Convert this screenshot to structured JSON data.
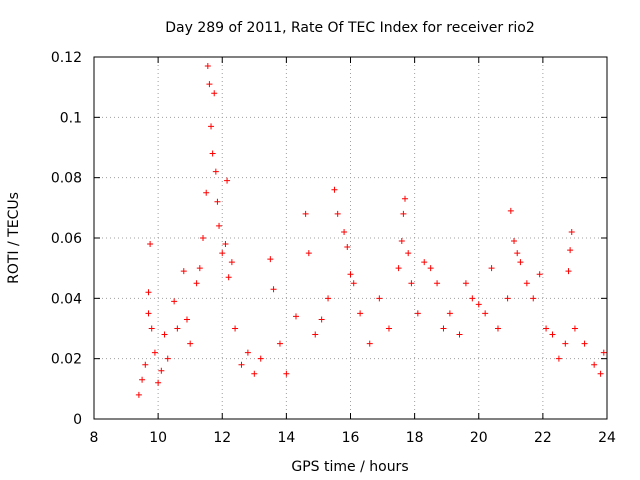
{
  "chart_data": {
    "type": "scatter",
    "title": "Day 289 of 2011, Rate Of TEC Index for receiver rio2",
    "xlabel": "GPS time / hours",
    "ylabel": "ROTI / TECUs",
    "xlim": [
      8,
      24
    ],
    "ylim": [
      0,
      0.12
    ],
    "xticks": [
      "8",
      "10",
      "12",
      "14",
      "16",
      "18",
      "20",
      "22",
      "24"
    ],
    "yticks": [
      "0",
      "0.02",
      "0.04",
      "0.06",
      "0.08",
      "0.1",
      "0.12"
    ],
    "grid": true,
    "marker": "plus",
    "color": "#ff0000",
    "series": [
      {
        "points": [
          [
            9.4,
            0.008
          ],
          [
            9.5,
            0.013
          ],
          [
            9.6,
            0.018
          ],
          [
            9.7,
            0.035
          ],
          [
            9.7,
            0.042
          ],
          [
            9.75,
            0.058
          ],
          [
            9.8,
            0.03
          ],
          [
            9.9,
            0.022
          ],
          [
            10.0,
            0.012
          ],
          [
            10.1,
            0.016
          ],
          [
            10.2,
            0.028
          ],
          [
            10.3,
            0.02
          ],
          [
            10.5,
            0.039
          ],
          [
            10.6,
            0.03
          ],
          [
            10.8,
            0.049
          ],
          [
            10.9,
            0.033
          ],
          [
            11.0,
            0.025
          ],
          [
            11.2,
            0.045
          ],
          [
            11.3,
            0.05
          ],
          [
            11.4,
            0.06
          ],
          [
            11.5,
            0.075
          ],
          [
            11.55,
            0.117
          ],
          [
            11.6,
            0.111
          ],
          [
            11.65,
            0.097
          ],
          [
            11.7,
            0.088
          ],
          [
            11.75,
            0.108
          ],
          [
            11.8,
            0.082
          ],
          [
            11.85,
            0.072
          ],
          [
            11.9,
            0.064
          ],
          [
            12.0,
            0.055
          ],
          [
            12.1,
            0.058
          ],
          [
            12.15,
            0.079
          ],
          [
            12.2,
            0.047
          ],
          [
            12.3,
            0.052
          ],
          [
            12.4,
            0.03
          ],
          [
            12.6,
            0.018
          ],
          [
            12.8,
            0.022
          ],
          [
            13.0,
            0.015
          ],
          [
            13.2,
            0.02
          ],
          [
            13.5,
            0.053
          ],
          [
            13.6,
            0.043
          ],
          [
            13.8,
            0.025
          ],
          [
            14.0,
            0.015
          ],
          [
            14.3,
            0.034
          ],
          [
            14.6,
            0.068
          ],
          [
            14.7,
            0.055
          ],
          [
            14.9,
            0.028
          ],
          [
            15.1,
            0.033
          ],
          [
            15.3,
            0.04
          ],
          [
            15.5,
            0.076
          ],
          [
            15.6,
            0.068
          ],
          [
            15.8,
            0.062
          ],
          [
            15.9,
            0.057
          ],
          [
            16.0,
            0.048
          ],
          [
            16.1,
            0.045
          ],
          [
            16.3,
            0.035
          ],
          [
            16.6,
            0.025
          ],
          [
            16.9,
            0.04
          ],
          [
            17.2,
            0.03
          ],
          [
            17.5,
            0.05
          ],
          [
            17.6,
            0.059
          ],
          [
            17.65,
            0.068
          ],
          [
            17.7,
            0.073
          ],
          [
            17.8,
            0.055
          ],
          [
            17.9,
            0.045
          ],
          [
            18.1,
            0.035
          ],
          [
            18.3,
            0.052
          ],
          [
            18.5,
            0.05
          ],
          [
            18.7,
            0.045
          ],
          [
            18.9,
            0.03
          ],
          [
            19.1,
            0.035
          ],
          [
            19.4,
            0.028
          ],
          [
            19.6,
            0.045
          ],
          [
            19.8,
            0.04
          ],
          [
            20.0,
            0.038
          ],
          [
            20.2,
            0.035
          ],
          [
            20.4,
            0.05
          ],
          [
            20.6,
            0.03
          ],
          [
            20.9,
            0.04
          ],
          [
            21.0,
            0.069
          ],
          [
            21.1,
            0.059
          ],
          [
            21.2,
            0.055
          ],
          [
            21.3,
            0.052
          ],
          [
            21.5,
            0.045
          ],
          [
            21.7,
            0.04
          ],
          [
            21.9,
            0.048
          ],
          [
            22.1,
            0.03
          ],
          [
            22.3,
            0.028
          ],
          [
            22.5,
            0.02
          ],
          [
            22.7,
            0.025
          ],
          [
            22.8,
            0.049
          ],
          [
            22.85,
            0.056
          ],
          [
            22.9,
            0.062
          ],
          [
            23.0,
            0.03
          ],
          [
            23.3,
            0.025
          ],
          [
            23.6,
            0.018
          ],
          [
            23.8,
            0.015
          ],
          [
            23.9,
            0.022
          ]
        ]
      }
    ]
  }
}
